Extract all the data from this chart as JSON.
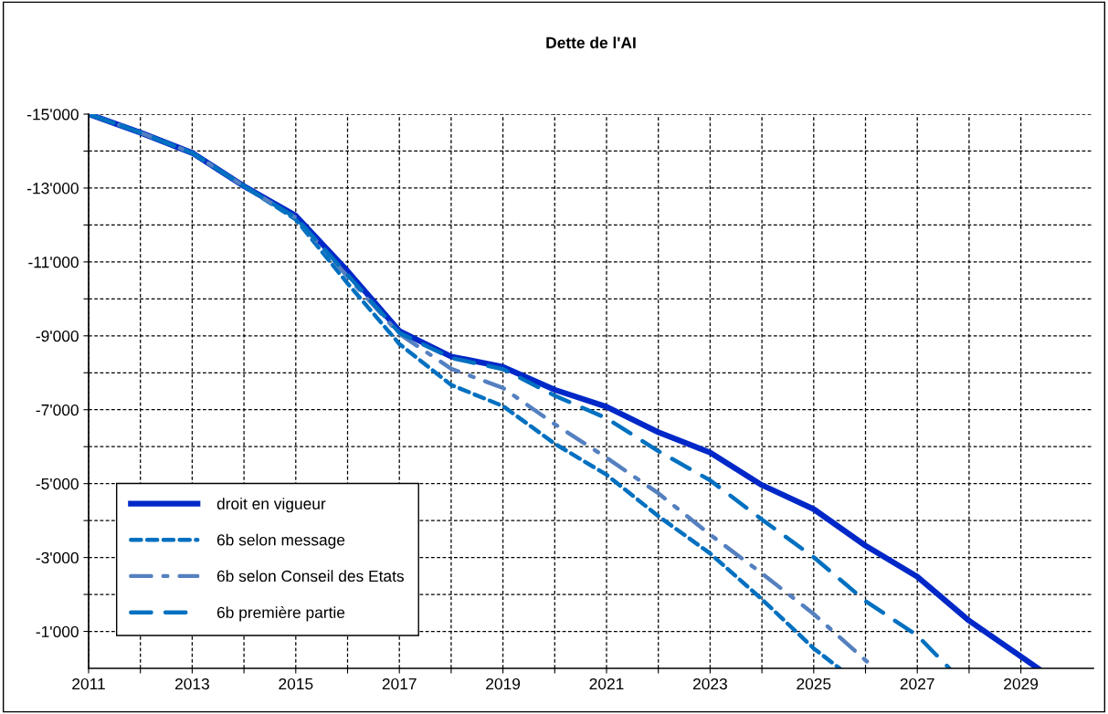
{
  "chart_data": {
    "type": "line",
    "title": "Dette de l'AI",
    "xlim": [
      2011,
      2030.4
    ],
    "ylim": [
      0,
      -15000
    ],
    "xticks": [
      {
        "value": 2011,
        "label": "2011"
      },
      {
        "value": 2012,
        "label": null
      },
      {
        "value": 2013,
        "label": "2013"
      },
      {
        "value": 2014,
        "label": null
      },
      {
        "value": 2015,
        "label": "2015"
      },
      {
        "value": 2016,
        "label": null
      },
      {
        "value": 2017,
        "label": "2017"
      },
      {
        "value": 2018,
        "label": null
      },
      {
        "value": 2019,
        "label": "2019"
      },
      {
        "value": 2020,
        "label": null
      },
      {
        "value": 2021,
        "label": "2021"
      },
      {
        "value": 2022,
        "label": null
      },
      {
        "value": 2023,
        "label": "2023"
      },
      {
        "value": 2024,
        "label": null
      },
      {
        "value": 2025,
        "label": "2025"
      },
      {
        "value": 2026,
        "label": null
      },
      {
        "value": 2027,
        "label": "2027"
      },
      {
        "value": 2028,
        "label": null
      },
      {
        "value": 2029,
        "label": "2029"
      }
    ],
    "yticks": [
      {
        "value": -15000,
        "label": "-15'000"
      },
      {
        "value": -14000,
        "label": null
      },
      {
        "value": -13000,
        "label": "-13'000"
      },
      {
        "value": -12000,
        "label": null
      },
      {
        "value": -11000,
        "label": "-11'000"
      },
      {
        "value": -10000,
        "label": null
      },
      {
        "value": -9000,
        "label": "-9'000"
      },
      {
        "value": -8000,
        "label": null
      },
      {
        "value": -7000,
        "label": "-7'000"
      },
      {
        "value": -6000,
        "label": null
      },
      {
        "value": -5000,
        "label": "-5'000"
      },
      {
        "value": -4000,
        "label": null
      },
      {
        "value": -3000,
        "label": "-3'000"
      },
      {
        "value": -2000,
        "label": null
      },
      {
        "value": -1000,
        "label": "-1'000"
      }
    ],
    "grid": true,
    "legend": "bottom left",
    "series": [
      {
        "name": "droit en vigueur",
        "color": "#0028c8",
        "line_style": "solid",
        "x": [
          2011,
          2012,
          2013,
          2014,
          2015,
          2016,
          2017,
          2018,
          2019,
          2020,
          2021,
          2022,
          2023,
          2024,
          2025,
          2026,
          2027,
          2028,
          2029,
          2029.33
        ],
        "values": [
          -15000,
          -14500,
          -13950,
          -13050,
          -12250,
          -10750,
          -9130,
          -8440,
          -8160,
          -7540,
          -7080,
          -6390,
          -5840,
          -4960,
          -4310,
          -3320,
          -2480,
          -1290,
          -320,
          0
        ]
      },
      {
        "name": "6b selon message",
        "color": "#0070c0",
        "line_style": "dotted",
        "x": [
          2011,
          2012,
          2013,
          2014,
          2015,
          2016,
          2017,
          2018,
          2019,
          2020,
          2021,
          2022,
          2023,
          2024,
          2025,
          2025.5
        ],
        "values": [
          -15000,
          -14500,
          -13950,
          -13050,
          -12150,
          -10420,
          -8780,
          -7670,
          -7100,
          -6080,
          -5240,
          -4120,
          -3110,
          -1870,
          -540,
          0
        ]
      },
      {
        "name": "6b selon Conseil des Etats",
        "color": "#5580c0",
        "line_style": "dashdot",
        "x": [
          2011,
          2012,
          2013,
          2014,
          2015,
          2016,
          2017,
          2018,
          2019,
          2020,
          2021,
          2022,
          2023,
          2024,
          2025,
          2026,
          2026.2
        ],
        "values": [
          -15000,
          -14500,
          -13950,
          -13050,
          -12200,
          -10600,
          -9050,
          -8110,
          -7590,
          -6610,
          -5700,
          -4740,
          -3620,
          -2570,
          -1470,
          -220,
          0
        ]
      },
      {
        "name": "6b première partie",
        "color": "#0070c0",
        "line_style": "dashed",
        "x": [
          2011,
          2012,
          2013,
          2014,
          2015,
          2016,
          2017,
          2018,
          2019,
          2020,
          2021,
          2022,
          2023,
          2024,
          2025,
          2026,
          2027,
          2027.62
        ],
        "values": [
          -15000,
          -14500,
          -13950,
          -13050,
          -12200,
          -10650,
          -9080,
          -8400,
          -8100,
          -7380,
          -6770,
          -5880,
          -5090,
          -4030,
          -3010,
          -1820,
          -890,
          0
        ]
      }
    ]
  }
}
